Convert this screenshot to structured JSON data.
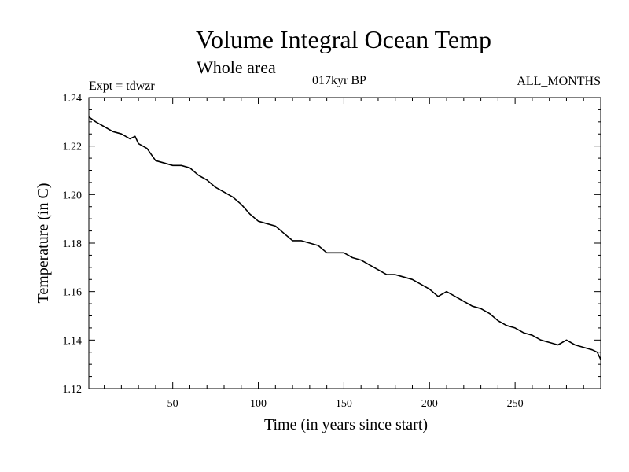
{
  "chart_data": {
    "type": "line",
    "title": "Volume Integral Ocean Temp",
    "subtitle": "Whole area",
    "experiment": "Expt = tdwzr",
    "period": "017kyr BP",
    "months": "ALL_MONTHS",
    "xlabel": "Time (in years since start)",
    "ylabel": "Temperature (in C)",
    "xlim": [
      1,
      300
    ],
    "ylim": [
      1.12,
      1.24
    ],
    "xticks": [
      50,
      100,
      150,
      200,
      250
    ],
    "xtick_labels": [
      "50",
      "100",
      "150",
      "200",
      "250"
    ],
    "yticks": [
      1.12,
      1.14,
      1.16,
      1.18,
      1.2,
      1.22,
      1.24
    ],
    "ytick_labels": [
      "1.12",
      "1.14",
      "1.16",
      "1.18",
      "1.20",
      "1.22",
      "1.24"
    ],
    "grid": false,
    "series": [
      {
        "color": "#000000",
        "x": [
          1,
          5,
          10,
          15,
          20,
          25,
          28,
          30,
          35,
          40,
          45,
          50,
          55,
          60,
          65,
          70,
          75,
          80,
          85,
          90,
          95,
          100,
          105,
          110,
          115,
          120,
          125,
          130,
          135,
          140,
          145,
          150,
          155,
          160,
          165,
          170,
          175,
          180,
          185,
          190,
          195,
          200,
          205,
          210,
          215,
          220,
          225,
          230,
          235,
          240,
          245,
          250,
          255,
          260,
          265,
          270,
          275,
          280,
          285,
          290,
          295,
          298,
          300
        ],
        "y": [
          1.232,
          1.23,
          1.228,
          1.226,
          1.225,
          1.223,
          1.224,
          1.221,
          1.219,
          1.214,
          1.213,
          1.212,
          1.212,
          1.211,
          1.208,
          1.206,
          1.203,
          1.201,
          1.199,
          1.196,
          1.192,
          1.189,
          1.188,
          1.187,
          1.184,
          1.181,
          1.181,
          1.18,
          1.179,
          1.176,
          1.176,
          1.176,
          1.174,
          1.173,
          1.171,
          1.169,
          1.167,
          1.167,
          1.166,
          1.165,
          1.163,
          1.161,
          1.158,
          1.16,
          1.158,
          1.156,
          1.154,
          1.153,
          1.151,
          1.148,
          1.146,
          1.145,
          1.143,
          1.142,
          1.14,
          1.139,
          1.138,
          1.14,
          1.138,
          1.137,
          1.136,
          1.135,
          1.132
        ]
      }
    ]
  }
}
